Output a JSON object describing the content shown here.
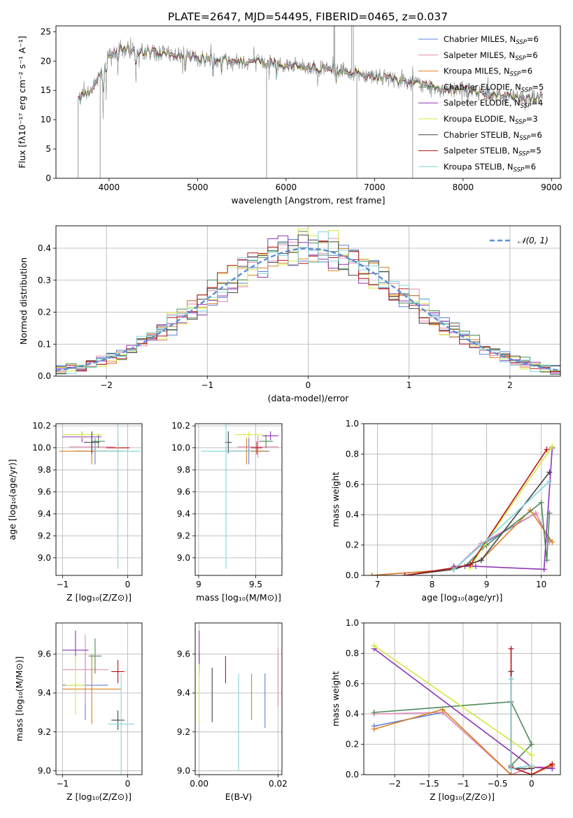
{
  "figure_title": "PLATE=2647, MJD=54495, FIBERID=0465, z=0.037",
  "colors": {
    "chabrier_miles": "#5b80d9",
    "salpeter_miles": "#e58ab5",
    "kroupa_miles": "#d98020",
    "chabrier_elodie": "#4f8a5a",
    "salpeter_elodie": "#8e34b3",
    "kroupa_elodie": "#d4e83a",
    "chabrier_stelib": "#444444",
    "salpeter_stelib": "#b51515",
    "kroupa_stelib": "#7dd6dc",
    "gaussian": "#5b8ed6",
    "grid": "#b0b0b0"
  },
  "chart_data": [
    {
      "id": "spectrum",
      "type": "line",
      "xlabel": "wavelength [Angstrom, rest frame]",
      "ylabel": "Flux [fλ10⁻¹⁷ erg cm⁻² s⁻¹ A⁻¹]",
      "xlim": [
        3400,
        9100
      ],
      "ylim": [
        0,
        26
      ],
      "xticks": [
        4000,
        5000,
        6000,
        7000,
        8000,
        9000
      ],
      "yticks": [
        0,
        5,
        10,
        15,
        20,
        25
      ],
      "legend_position": "top-right",
      "legend": [
        {
          "label": "Chabrier MILES, N",
          "sub": "SSP",
          "suffix": "=6",
          "color_key": "chabrier_miles"
        },
        {
          "label": "Salpeter MILES, N",
          "sub": "SSP",
          "suffix": "=6",
          "color_key": "salpeter_miles"
        },
        {
          "label": "Kroupa MILES, N",
          "sub": "SSP",
          "suffix": "=6",
          "color_key": "kroupa_miles"
        },
        {
          "label": "Chabrier ELODIE, N",
          "sub": "SSP",
          "suffix": "=5",
          "color_key": "chabrier_elodie"
        },
        {
          "label": "Salpeter ELODIE, N",
          "sub": "SSP",
          "suffix": "=4",
          "color_key": "salpeter_elodie"
        },
        {
          "label": "Kroupa ELODIE, N",
          "sub": "SSP",
          "suffix": "=3",
          "color_key": "kroupa_elodie"
        },
        {
          "label": "Chabrier STELIB, N",
          "sub": "SSP",
          "suffix": "=6",
          "color_key": "chabrier_stelib"
        },
        {
          "label": "Salpeter STELIB, N",
          "sub": "SSP",
          "suffix": "=5",
          "color_key": "salpeter_stelib"
        },
        {
          "label": "Kroupa STELIB, N",
          "sub": "SSP",
          "suffix": "=6",
          "color_key": "kroupa_stelib"
        }
      ],
      "continuum": [
        [
          3650,
          13.5
        ],
        [
          3800,
          15
        ],
        [
          4000,
          21
        ],
        [
          4200,
          22
        ],
        [
          4500,
          21.5
        ],
        [
          4800,
          21
        ],
        [
          5000,
          20.5
        ],
        [
          5500,
          20
        ],
        [
          6000,
          19.5
        ],
        [
          6500,
          18.5
        ],
        [
          7000,
          17.5
        ],
        [
          7500,
          16
        ],
        [
          8000,
          15
        ],
        [
          8500,
          14
        ],
        [
          8900,
          13.8
        ]
      ],
      "absorption_lines": [
        {
          "wave": 3933,
          "depth": 9
        },
        {
          "wave": 3968,
          "depth": 6
        },
        {
          "wave": 4101,
          "depth": 4
        },
        {
          "wave": 4304,
          "depth": 5
        },
        {
          "wave": 4340,
          "depth": 3
        },
        {
          "wave": 4861,
          "depth": 3
        },
        {
          "wave": 5175,
          "depth": 3
        },
        {
          "wave": 5270,
          "depth": 2
        },
        {
          "wave": 5893,
          "depth": 3
        },
        {
          "wave": 6563,
          "depth": 2
        },
        {
          "wave": 7600,
          "depth": 1
        }
      ],
      "spikes": [
        {
          "wave": 3650,
          "to": 0
        },
        {
          "wave": 3900,
          "to": 0
        },
        {
          "wave": 5780,
          "to": 0
        },
        {
          "wave": 6540,
          "to": 26
        },
        {
          "wave": 6550,
          "to": 26
        },
        {
          "wave": 6740,
          "to": 26
        },
        {
          "wave": 6760,
          "to": 26
        },
        {
          "wave": 6800,
          "to": 0
        },
        {
          "wave": 7430,
          "to": 0
        }
      ]
    },
    {
      "id": "residuals",
      "type": "histogram",
      "xlabel": "(data-model)/error",
      "ylabel": "Normed distribution",
      "xlim": [
        -2.5,
        2.5
      ],
      "ylim": [
        0,
        0.47
      ],
      "xticks": [
        -2,
        -1,
        0,
        1,
        2
      ],
      "yticks": [
        0.0,
        0.1,
        0.2,
        0.3,
        0.4
      ],
      "bin_width": 0.1,
      "legend_label": "𝒩(0, 1)",
      "legend_position": "top-right",
      "reference_curve": "standard normal density"
    },
    {
      "id": "z_age",
      "type": "errorbar",
      "xlabel": "Z [log₁₀(Z/Z⊙)]",
      "ylabel": "age  [log₁₀(age/yr)]",
      "xlim": [
        -1.1,
        0.22
      ],
      "ylim": [
        8.84,
        10.22
      ],
      "xticks": [
        -1,
        0
      ],
      "yticks": [
        9.0,
        9.2,
        9.4,
        9.6,
        9.8,
        10.0,
        10.2
      ],
      "points": [
        {
          "c": "chabrier_miles",
          "x": -0.5,
          "xe": 0.3,
          "y": 9.97,
          "ye": 0.12
        },
        {
          "c": "salpeter_miles",
          "x": -0.55,
          "xe": 0.35,
          "y": 10.01,
          "ye": 0.1
        },
        {
          "c": "kroupa_miles",
          "x": -0.55,
          "xe": 0.5,
          "y": 9.97,
          "ye": 0.12
        },
        {
          "c": "chabrier_elodie",
          "x": -0.45,
          "xe": 0.1,
          "y": 10.06,
          "ye": 0.06
        },
        {
          "c": "salpeter_elodie",
          "x": -0.7,
          "xe": 0.3,
          "y": 10.1,
          "ye": 0.05
        },
        {
          "c": "kroupa_elodie",
          "x": -0.7,
          "xe": 0.3,
          "y": 10.12,
          "ye": 0.03
        },
        {
          "c": "chabrier_stelib",
          "x": -0.55,
          "xe": 0.12,
          "y": 10.05,
          "ye": 0.1
        },
        {
          "c": "salpeter_stelib",
          "x": -0.15,
          "xe": 0.18,
          "y": 10.0,
          "ye": 0.06
        },
        {
          "c": "kroupa_stelib",
          "x": -0.15,
          "xe": 0.35,
          "y": 9.97,
          "ye": 1.07
        }
      ]
    },
    {
      "id": "mass_age",
      "type": "errorbar",
      "xlabel": "mass [log₁₀(M/M⊙)]",
      "ylabel": "",
      "xlim": [
        8.97,
        9.73
      ],
      "ylim": [
        8.84,
        10.22
      ],
      "xticks": [
        9.0,
        9.5
      ],
      "yticks": [
        9.0,
        9.2,
        9.4,
        9.6,
        9.8,
        10.0,
        10.2
      ],
      "points": [
        {
          "c": "chabrier_miles",
          "x": 9.44,
          "xe": 0.18,
          "y": 9.97,
          "ye": 0.12
        },
        {
          "c": "salpeter_miles",
          "x": 9.52,
          "xe": 0.18,
          "y": 10.01,
          "ye": 0.1
        },
        {
          "c": "kroupa_miles",
          "x": 9.42,
          "xe": 0.18,
          "y": 9.97,
          "ye": 0.12
        },
        {
          "c": "chabrier_elodie",
          "x": 9.59,
          "xe": 0.06,
          "y": 10.06,
          "ye": 0.06
        },
        {
          "c": "salpeter_elodie",
          "x": 9.63,
          "xe": 0.07,
          "y": 10.11,
          "ye": 0.04
        },
        {
          "c": "kroupa_elodie",
          "x": 9.44,
          "xe": 0.12,
          "y": 10.12,
          "ye": 0.03
        },
        {
          "c": "chabrier_stelib",
          "x": 9.26,
          "xe": 0.03,
          "y": 10.05,
          "ye": 0.1
        },
        {
          "c": "salpeter_stelib",
          "x": 9.51,
          "xe": 0.05,
          "y": 10.0,
          "ye": 0.06
        },
        {
          "c": "kroupa_stelib",
          "x": 9.24,
          "xe": 0.22,
          "y": 9.97,
          "ye": 1.07
        }
      ]
    },
    {
      "id": "age_weight",
      "type": "line",
      "xlabel": "age  [log₁₀(age/yr)]",
      "ylabel": "mass weight",
      "xlim": [
        6.75,
        10.35
      ],
      "ylim": [
        0,
        1.0
      ],
      "xticks": [
        7,
        8,
        9,
        10
      ],
      "yticks": [
        0.0,
        0.2,
        0.4,
        0.6,
        0.8,
        1.0
      ],
      "series": [
        {
          "c": "chabrier_miles",
          "x": [
            6.9,
            8.4,
            8.9,
            9.9,
            10.15
          ],
          "y": [
            0.0,
            0.04,
            0.2,
            0.41,
            0.23
          ]
        },
        {
          "c": "salpeter_miles",
          "x": [
            6.9,
            8.4,
            8.9,
            9.9,
            10.15
          ],
          "y": [
            0.0,
            0.04,
            0.21,
            0.41,
            0.22
          ]
        },
        {
          "c": "kroupa_miles",
          "x": [
            6.9,
            8.4,
            8.9,
            9.8,
            10.2
          ],
          "y": [
            0.0,
            0.04,
            0.1,
            0.43,
            0.22
          ]
        },
        {
          "c": "chabrier_elodie",
          "x": [
            8.6,
            9.0,
            10.0,
            10.1,
            10.15
          ],
          "y": [
            0.06,
            0.2,
            0.48,
            0.1,
            0.41
          ]
        },
        {
          "c": "salpeter_elodie",
          "x": [
            8.4,
            8.8,
            10.05,
            10.2
          ],
          "y": [
            0.06,
            0.06,
            0.04,
            0.84
          ]
        },
        {
          "c": "kroupa_elodie",
          "x": [
            8.7,
            8.95,
            10.2
          ],
          "y": [
            0.05,
            0.2,
            0.85
          ]
        },
        {
          "c": "chabrier_stelib",
          "x": [
            7.5,
            8.4,
            8.9,
            10.15
          ],
          "y": [
            0.0,
            0.04,
            0.1,
            0.68
          ]
        },
        {
          "c": "salpeter_stelib",
          "x": [
            7.5,
            8.4,
            8.7,
            10.1
          ],
          "y": [
            0.0,
            0.05,
            0.07,
            0.83
          ]
        },
        {
          "c": "kroupa_stelib",
          "x": [
            8.4,
            8.9,
            10.15
          ],
          "y": [
            0.04,
            0.2,
            0.62
          ]
        }
      ]
    },
    {
      "id": "z_mass",
      "type": "errorbar",
      "xlabel": "Z [log₁₀(Z/Z⊙)]",
      "ylabel": "mass [log₁₀(M/M⊙)]",
      "xlim": [
        -1.1,
        0.22
      ],
      "ylim": [
        8.98,
        9.76
      ],
      "xticks": [
        -1,
        0
      ],
      "yticks": [
        9.0,
        9.2,
        9.4,
        9.6
      ],
      "points": [
        {
          "c": "chabrier_miles",
          "x": -0.65,
          "xe": 0.35,
          "y": 9.44,
          "ye": 0.18
        },
        {
          "c": "salpeter_miles",
          "x": -0.65,
          "xe": 0.35,
          "y": 9.52,
          "ye": 0.18
        },
        {
          "c": "kroupa_miles",
          "x": -0.55,
          "xe": 0.45,
          "y": 9.42,
          "ye": 0.18
        },
        {
          "c": "chabrier_elodie",
          "x": -0.5,
          "xe": 0.1,
          "y": 9.59,
          "ye": 0.09
        },
        {
          "c": "salpeter_elodie",
          "x": -0.8,
          "xe": 0.2,
          "y": 9.62,
          "ye": 0.1
        },
        {
          "c": "kroupa_elodie",
          "x": -0.8,
          "xe": 0.15,
          "y": 9.44,
          "ye": 0.15
        },
        {
          "c": "chabrier_stelib",
          "x": -0.15,
          "xe": 0.1,
          "y": 9.26,
          "ye": 0.05
        },
        {
          "c": "salpeter_stelib",
          "x": -0.15,
          "xe": 0.1,
          "y": 9.51,
          "ye": 0.06
        },
        {
          "c": "kroupa_stelib",
          "x": -0.1,
          "xe": 0.2,
          "y": 9.24,
          "ye": 0.26
        }
      ]
    },
    {
      "id": "ebv_mass",
      "type": "errorbar",
      "xlabel": "E(B-V)",
      "ylabel": "",
      "xlim": [
        -0.001,
        0.021
      ],
      "ylim": [
        8.98,
        9.76
      ],
      "xticks": [
        0.0,
        0.02
      ],
      "xtick_labels": [
        "0.00",
        "0.02"
      ],
      "yticks": [
        9.0,
        9.2,
        9.4,
        9.6
      ],
      "points": [
        {
          "c": "chabrier_miles",
          "x": 0.0167,
          "xe": 0,
          "y": 9.36,
          "ye": 0.14
        },
        {
          "c": "salpeter_miles",
          "x": 0.02,
          "xe": 0,
          "y": 9.48,
          "ye": 0.15
        },
        {
          "c": "kroupa_miles",
          "x": 0.0133,
          "xe": 0,
          "y": 9.38,
          "ye": 0.12
        },
        {
          "c": "chabrier_elodie",
          "x": 0.0,
          "xe": 0,
          "y": 9.55,
          "ye": 0.05
        },
        {
          "c": "salpeter_elodie",
          "x": 0.0,
          "xe": 0,
          "y": 9.62,
          "ye": 0.1
        },
        {
          "c": "kroupa_elodie",
          "x": 0.0,
          "xe": 0,
          "y": 9.4,
          "ye": 0.15
        },
        {
          "c": "chabrier_stelib",
          "x": 0.0033,
          "xe": 0,
          "y": 9.39,
          "ye": 0.14
        },
        {
          "c": "salpeter_stelib",
          "x": 0.0067,
          "xe": 0,
          "y": 9.52,
          "ye": 0.07
        },
        {
          "c": "kroupa_stelib",
          "x": 0.01,
          "xe": 0,
          "y": 9.25,
          "ye": 0.25
        }
      ]
    },
    {
      "id": "z_weight",
      "type": "line",
      "xlabel": "Z [log₁₀(Z/Z⊙)]",
      "ylabel": "mass weight",
      "xlim": [
        -2.45,
        0.42
      ],
      "ylim": [
        0,
        1.0
      ],
      "xticks": [
        -2.0,
        -1.5,
        -1.0,
        -0.5,
        0.0
      ],
      "yticks": [
        0.0,
        0.2,
        0.4,
        0.6,
        0.8,
        1.0
      ],
      "series": [
        {
          "c": "chabrier_miles",
          "x": [
            -2.3,
            -1.3,
            -0.3,
            0.0,
            0.3
          ],
          "y": [
            0.32,
            0.41,
            0.0,
            0.05,
            0.04
          ]
        },
        {
          "c": "salpeter_miles",
          "x": [
            -2.3,
            -1.3,
            -0.3,
            0.0,
            0.3
          ],
          "y": [
            0.4,
            0.41,
            0.0,
            0.05,
            0.05
          ]
        },
        {
          "c": "kroupa_miles",
          "x": [
            -2.3,
            -1.3,
            -0.3,
            0.0,
            0.3
          ],
          "y": [
            0.3,
            0.43,
            0.0,
            0.0,
            0.06
          ]
        },
        {
          "c": "chabrier_elodie",
          "x": [
            -2.3,
            -0.3,
            0.0,
            -0.3
          ],
          "y": [
            0.41,
            0.48,
            0.2,
            0.06
          ]
        },
        {
          "c": "salpeter_elodie",
          "x": [
            -2.3,
            0.0,
            0.3
          ],
          "y": [
            0.83,
            0.05,
            0.04
          ]
        },
        {
          "c": "kroupa_elodie",
          "x": [
            -2.3,
            0.0,
            0.0
          ],
          "y": [
            0.85,
            0.13,
            0.05
          ]
        },
        {
          "c": "chabrier_stelib",
          "x": [
            -0.3,
            -0.3,
            0.0
          ],
          "y": [
            0.68,
            0.04,
            0.04
          ]
        },
        {
          "c": "salpeter_stelib",
          "x": [
            -0.3,
            -0.3,
            0.0,
            0.3
          ],
          "y": [
            0.83,
            0.05,
            0.0,
            0.07
          ]
        },
        {
          "c": "kroupa_stelib",
          "x": [
            -0.3,
            -0.3,
            0.0
          ],
          "y": [
            0.63,
            0.04,
            0.06
          ]
        }
      ]
    }
  ]
}
